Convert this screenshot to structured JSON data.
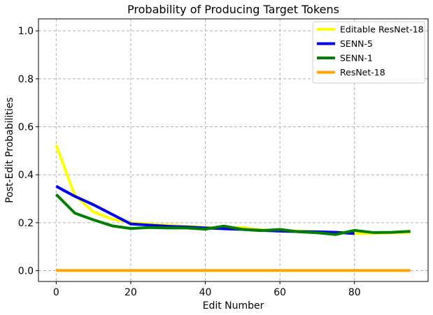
{
  "chart_data": {
    "type": "line",
    "title": "Probability of Producing Target Tokens",
    "xlabel": "Edit Number",
    "ylabel": "Post-Edit Probabilities",
    "xlim": [
      -4.75,
      99.75
    ],
    "ylim": [
      -0.045,
      1.05
    ],
    "xticks": [
      0,
      20,
      40,
      60,
      80
    ],
    "yticks": [
      0.0,
      0.2,
      0.4,
      0.6,
      0.8,
      1.0
    ],
    "xtick_labels": [
      "0",
      "20",
      "40",
      "60",
      "80"
    ],
    "ytick_labels": [
      "0.0",
      "0.2",
      "0.4",
      "0.6",
      "0.8",
      "1.0"
    ],
    "grid": true,
    "legend_position": "top-right",
    "series": [
      {
        "name": "Editable ResNet-18",
        "color": "#ffff00",
        "x": [
          0,
          5,
          10,
          15,
          20,
          25,
          30,
          35,
          40,
          45,
          50,
          55,
          60,
          65,
          70,
          75,
          80,
          85,
          90,
          95
        ],
        "y": [
          0.525,
          0.315,
          0.245,
          0.215,
          0.2,
          0.195,
          0.19,
          0.185,
          0.18,
          0.178,
          0.18,
          0.17,
          0.168,
          0.165,
          0.163,
          0.16,
          0.155,
          0.155,
          0.158,
          0.16
        ]
      },
      {
        "name": "SENN-5",
        "color": "#0000ee",
        "x": [
          0,
          5,
          10,
          15,
          20,
          25,
          30,
          35,
          40,
          45,
          50,
          55,
          60,
          65,
          70,
          75,
          80
        ],
        "y": [
          0.352,
          0.31,
          0.275,
          0.235,
          0.195,
          0.19,
          0.185,
          0.182,
          0.178,
          0.175,
          0.172,
          0.168,
          0.165,
          0.163,
          0.162,
          0.16,
          0.155
        ]
      },
      {
        "name": "SENN-1",
        "color": "#007f00",
        "x": [
          0,
          5,
          10,
          15,
          20,
          25,
          30,
          35,
          40,
          45,
          50,
          55,
          60,
          65,
          70,
          75,
          80,
          85,
          90,
          95
        ],
        "y": [
          0.318,
          0.24,
          0.212,
          0.187,
          0.176,
          0.18,
          0.178,
          0.178,
          0.173,
          0.186,
          0.172,
          0.167,
          0.172,
          0.162,
          0.158,
          0.151,
          0.168,
          0.159,
          0.16,
          0.164
        ]
      },
      {
        "name": "ResNet-18",
        "color": "#ffa500",
        "x": [
          0,
          95
        ],
        "y": [
          0.001,
          0.001
        ]
      }
    ]
  }
}
